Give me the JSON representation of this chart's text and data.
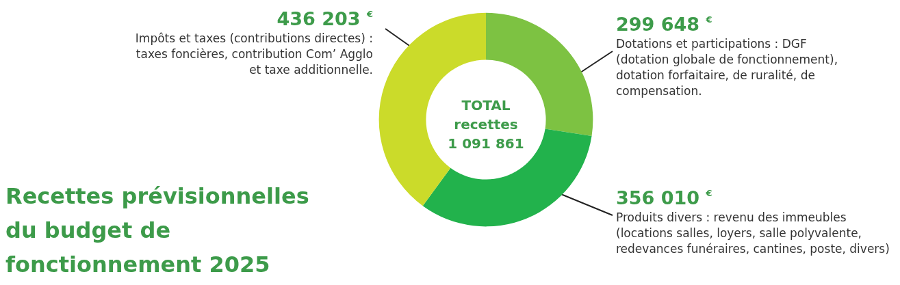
{
  "chart_data": {
    "type": "donut",
    "title": "Recettes prévisionnelles du budget de fonctionnement 2025",
    "categories": [
      "Dotations et participations : DGF (dotation globale de fonctionnement), dotation forfaitaire, de ruralité, de compensation.",
      "Produits divers : revenu des immeubles (locations salles, loyers, salle polyvalente, redevances funéraires, cantines, poste, divers)",
      "Impôts et taxes (contributions directes) : taxes foncières, contribution Com’ Agglo et taxe additionnelle."
    ],
    "values": [
      299648,
      356010,
      436203
    ],
    "colors": [
      "#7dc242",
      "#22b24c",
      "#cbdb2a"
    ],
    "value_labels": [
      "299 648 $^{€}$",
      "356 010 $^{€}$",
      "436 203 $^{€}$"
    ],
    "annotations": [
      "TOTAL\nrecettes\n1 091 861"
    ]
  }
}
